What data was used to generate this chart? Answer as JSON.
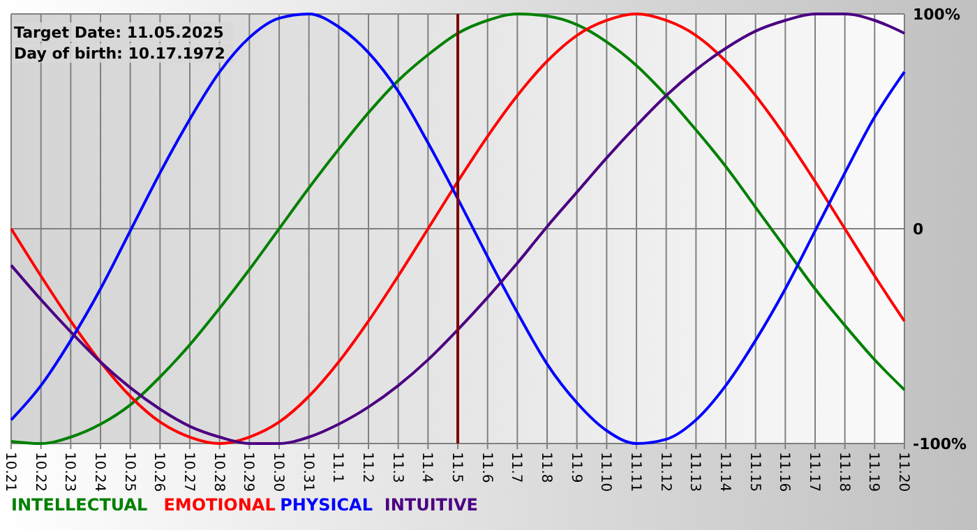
{
  "chart_data": {
    "type": "line",
    "categories": [
      "10.21",
      "10.22",
      "10.23",
      "10.24",
      "10.25",
      "10.26",
      "10.27",
      "10.28",
      "10.29",
      "10.30",
      "10.31",
      "11.1",
      "11.2",
      "11.3",
      "11.4",
      "11.5",
      "11.6",
      "11.7",
      "11.8",
      "11.9",
      "11.10",
      "11.11",
      "11.12",
      "11.13",
      "11.14",
      "11.15",
      "11.16",
      "11.17",
      "11.18",
      "11.19",
      "11.20"
    ],
    "series": [
      {
        "name": "INTELLECTUAL",
        "color": "#008000",
        "values": [
          -99,
          -100,
          -97,
          -91,
          -82,
          -69,
          -54,
          -37,
          -19,
          0,
          19,
          37,
          54,
          69,
          81,
          91,
          97,
          100,
          99,
          95,
          87,
          76,
          62,
          46,
          29,
          10,
          -9,
          -28,
          -45,
          -61,
          -75
        ]
      },
      {
        "name": "EMOTIONAL",
        "color": "#ff0000",
        "values": [
          0,
          -22,
          -43,
          -62,
          -78,
          -90,
          -97,
          -100,
          -97,
          -90,
          -78,
          -62,
          -43,
          -22,
          0,
          22,
          43,
          62,
          78,
          90,
          97,
          100,
          97,
          90,
          78,
          62,
          43,
          22,
          0,
          -22,
          -43
        ]
      },
      {
        "name": "PHYSICAL",
        "color": "#0000ff",
        "values": [
          -89,
          -73,
          -52,
          -28,
          -1,
          26,
          51,
          73,
          89,
          98,
          100,
          94,
          82,
          64,
          40,
          14,
          -13,
          -39,
          -63,
          -81,
          -94,
          -100,
          -98,
          -89,
          -73,
          -52,
          -28,
          -1,
          26,
          52,
          73
        ]
      },
      {
        "name": "INTUITIVE",
        "color": "#4b0082",
        "values": [
          -17,
          -33,
          -48,
          -62,
          -74,
          -84,
          -92,
          -97,
          -100,
          -100,
          -97,
          -91,
          -83,
          -73,
          -61,
          -47,
          -32,
          -16,
          1,
          17,
          33,
          48,
          62,
          74,
          84,
          92,
          97,
          100,
          100,
          97,
          91
        ]
      }
    ],
    "ylim": [
      -100,
      100
    ],
    "yticks": [
      {
        "value": 100,
        "label": "100%"
      },
      0,
      {
        "value": -100,
        "label": "-100%"
      }
    ],
    "grid": true,
    "legend": "bottom left",
    "marker": "none",
    "line_style": "solid",
    "ref_lines": [
      {
        "axis": "x",
        "value": "11.5",
        "color": "#800000"
      }
    ],
    "annotations": [
      "Target Date: 11.05.2025",
      "Day of birth: 10.17.1972"
    ]
  }
}
